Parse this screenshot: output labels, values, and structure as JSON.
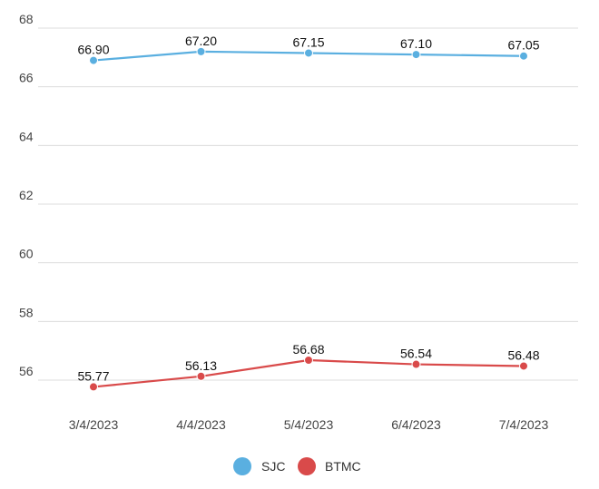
{
  "chart_data": {
    "type": "line",
    "title": "",
    "xlabel": "",
    "ylabel": "",
    "categories": [
      "3/4/2023",
      "4/4/2023",
      "5/4/2023",
      "6/4/2023",
      "7/4/2023"
    ],
    "ylim": [
      55,
      68
    ],
    "yticks": [
      56,
      58,
      60,
      62,
      64,
      66,
      68
    ],
    "grid": true,
    "legend_position": "bottom",
    "series": [
      {
        "name": "SJC",
        "color": "#5aafe0",
        "values": [
          66.9,
          67.2,
          67.15,
          67.1,
          67.05
        ],
        "labels": [
          "66.90",
          "67.20",
          "67.15",
          "67.10",
          "67.05"
        ]
      },
      {
        "name": "BTMC",
        "color": "#d94a4a",
        "values": [
          55.77,
          56.13,
          56.68,
          56.54,
          56.48
        ],
        "labels": [
          "55.77",
          "56.13",
          "56.68",
          "56.54",
          "56.48"
        ]
      }
    ]
  }
}
